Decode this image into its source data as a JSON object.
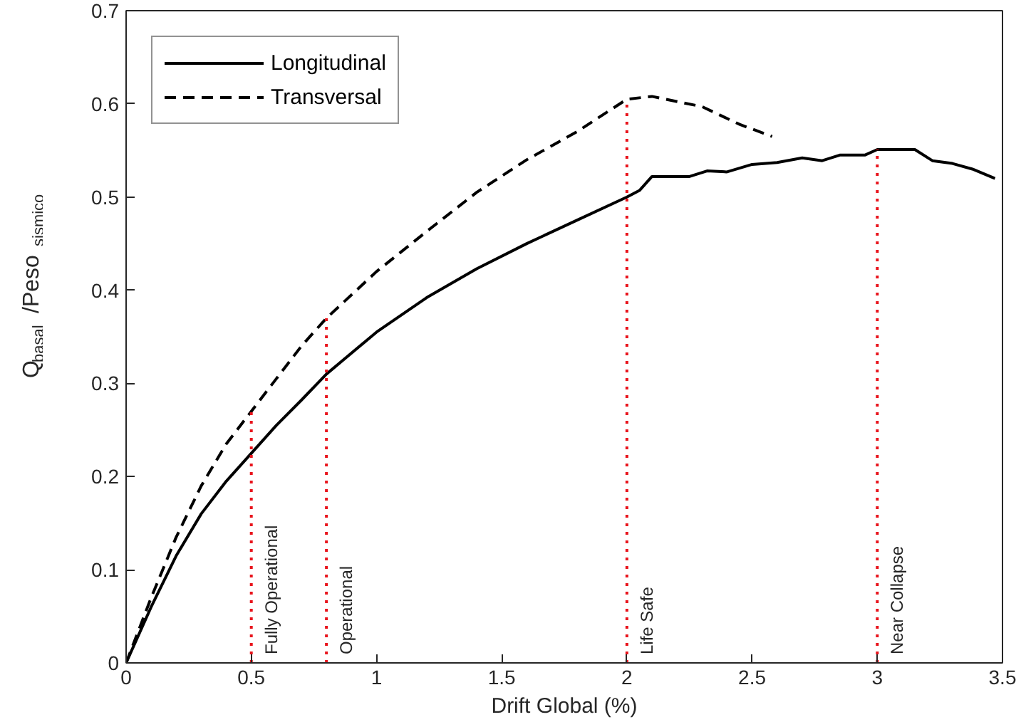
{
  "chart_data": {
    "type": "line",
    "xlabel": "Drift Global (%)",
    "ylabel": "Q$_{basal}$/Peso$_{sismico}$",
    "xlim": [
      0,
      3.5
    ],
    "ylim": [
      0,
      0.7
    ],
    "xticks": [
      0,
      0.5,
      1,
      1.5,
      2,
      2.5,
      3,
      3.5
    ],
    "yticks": [
      0,
      0.1,
      0.2,
      0.3,
      0.4,
      0.5,
      0.6,
      0.7
    ],
    "grid": false,
    "legend": "top left",
    "marker": "none",
    "series": [
      {
        "name": "Longitudinal",
        "color": "#000000",
        "line_style": "solid",
        "x": [
          0,
          0.1,
          0.2,
          0.3,
          0.4,
          0.5,
          0.6,
          0.7,
          0.8,
          1.0,
          1.2,
          1.4,
          1.6,
          1.8,
          2.0,
          2.05,
          2.1,
          2.25,
          2.32,
          2.4,
          2.5,
          2.6,
          2.7,
          2.78,
          2.85,
          2.95,
          3.0,
          3.15,
          3.22,
          3.3,
          3.38,
          3.47
        ],
        "values": [
          0,
          0.06,
          0.115,
          0.16,
          0.195,
          0.225,
          0.255,
          0.282,
          0.31,
          0.355,
          0.392,
          0.423,
          0.45,
          0.475,
          0.5,
          0.507,
          0.522,
          0.522,
          0.528,
          0.527,
          0.535,
          0.537,
          0.542,
          0.539,
          0.545,
          0.545,
          0.551,
          0.551,
          0.539,
          0.536,
          0.53,
          0.52
        ]
      },
      {
        "name": "Transversal",
        "color": "#000000",
        "line_style": "dashed",
        "x": [
          0,
          0.1,
          0.2,
          0.3,
          0.4,
          0.5,
          0.6,
          0.7,
          0.8,
          1.0,
          1.2,
          1.4,
          1.6,
          1.8,
          2.0,
          2.1,
          2.3,
          2.45,
          2.58
        ],
        "values": [
          0,
          0.07,
          0.135,
          0.19,
          0.235,
          0.27,
          0.305,
          0.34,
          0.37,
          0.42,
          0.463,
          0.505,
          0.54,
          0.57,
          0.605,
          0.608,
          0.597,
          0.578,
          0.565
        ]
      }
    ],
    "ref_lines": [
      {
        "axis": "x",
        "value": 0.5,
        "label": "Fully Operational",
        "color": "#e8141c",
        "line_style": "dotted"
      },
      {
        "axis": "x",
        "value": 0.8,
        "label": "Operational",
        "color": "#e8141c",
        "line_style": "dotted"
      },
      {
        "axis": "x",
        "value": 2,
        "label": "Life Safe",
        "color": "#e8141c",
        "line_style": "dotted"
      },
      {
        "axis": "x",
        "value": 3,
        "label": "Near Collapse",
        "color": "#e8141c",
        "line_style": "dotted"
      }
    ]
  }
}
